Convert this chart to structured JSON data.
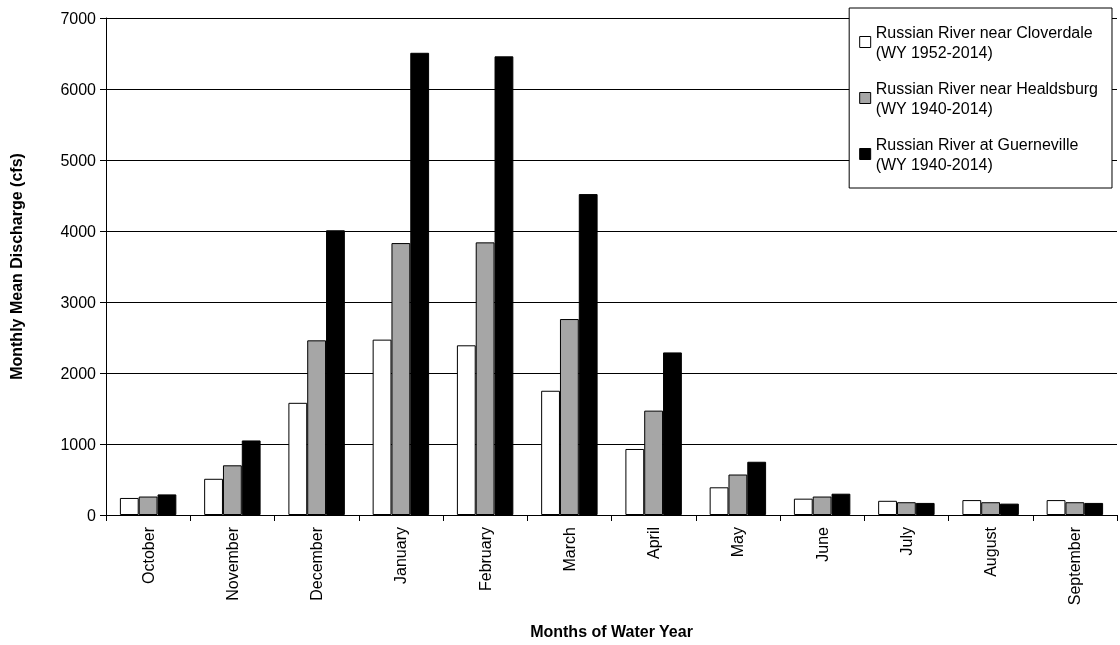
{
  "chart_data": {
    "type": "bar",
    "xlabel": "Months of Water Year",
    "ylabel": "Monthly Mean Discharge (cfs)",
    "categories": [
      "October",
      "November",
      "December",
      "January",
      "February",
      "March",
      "April",
      "May",
      "June",
      "July",
      "August",
      "September"
    ],
    "series": [
      {
        "name": "Russian River near Cloverdale\n(WY 1952-2014)",
        "color": "#ffffff",
        "values": [
          240,
          510,
          1580,
          2470,
          2390,
          1750,
          930,
          390,
          230,
          200,
          210,
          210
        ]
      },
      {
        "name": "Russian River near Healdsburg\n(WY 1940-2014)",
        "color": "#a6a6a6",
        "values": [
          260,
          700,
          2460,
          3830,
          3840,
          2760,
          1470,
          570,
          260,
          180,
          180,
          180
        ]
      },
      {
        "name": "Russian River at Guerneville\n(WY 1940-2014)",
        "color": "#000000",
        "values": [
          290,
          1050,
          4010,
          6510,
          6460,
          4520,
          2290,
          750,
          300,
          170,
          160,
          170
        ]
      }
    ],
    "ylim": [
      0,
      7000
    ],
    "yticks": [
      0,
      1000,
      2000,
      3000,
      4000,
      5000,
      6000,
      7000
    ],
    "grid": "y",
    "legend": "top right"
  }
}
